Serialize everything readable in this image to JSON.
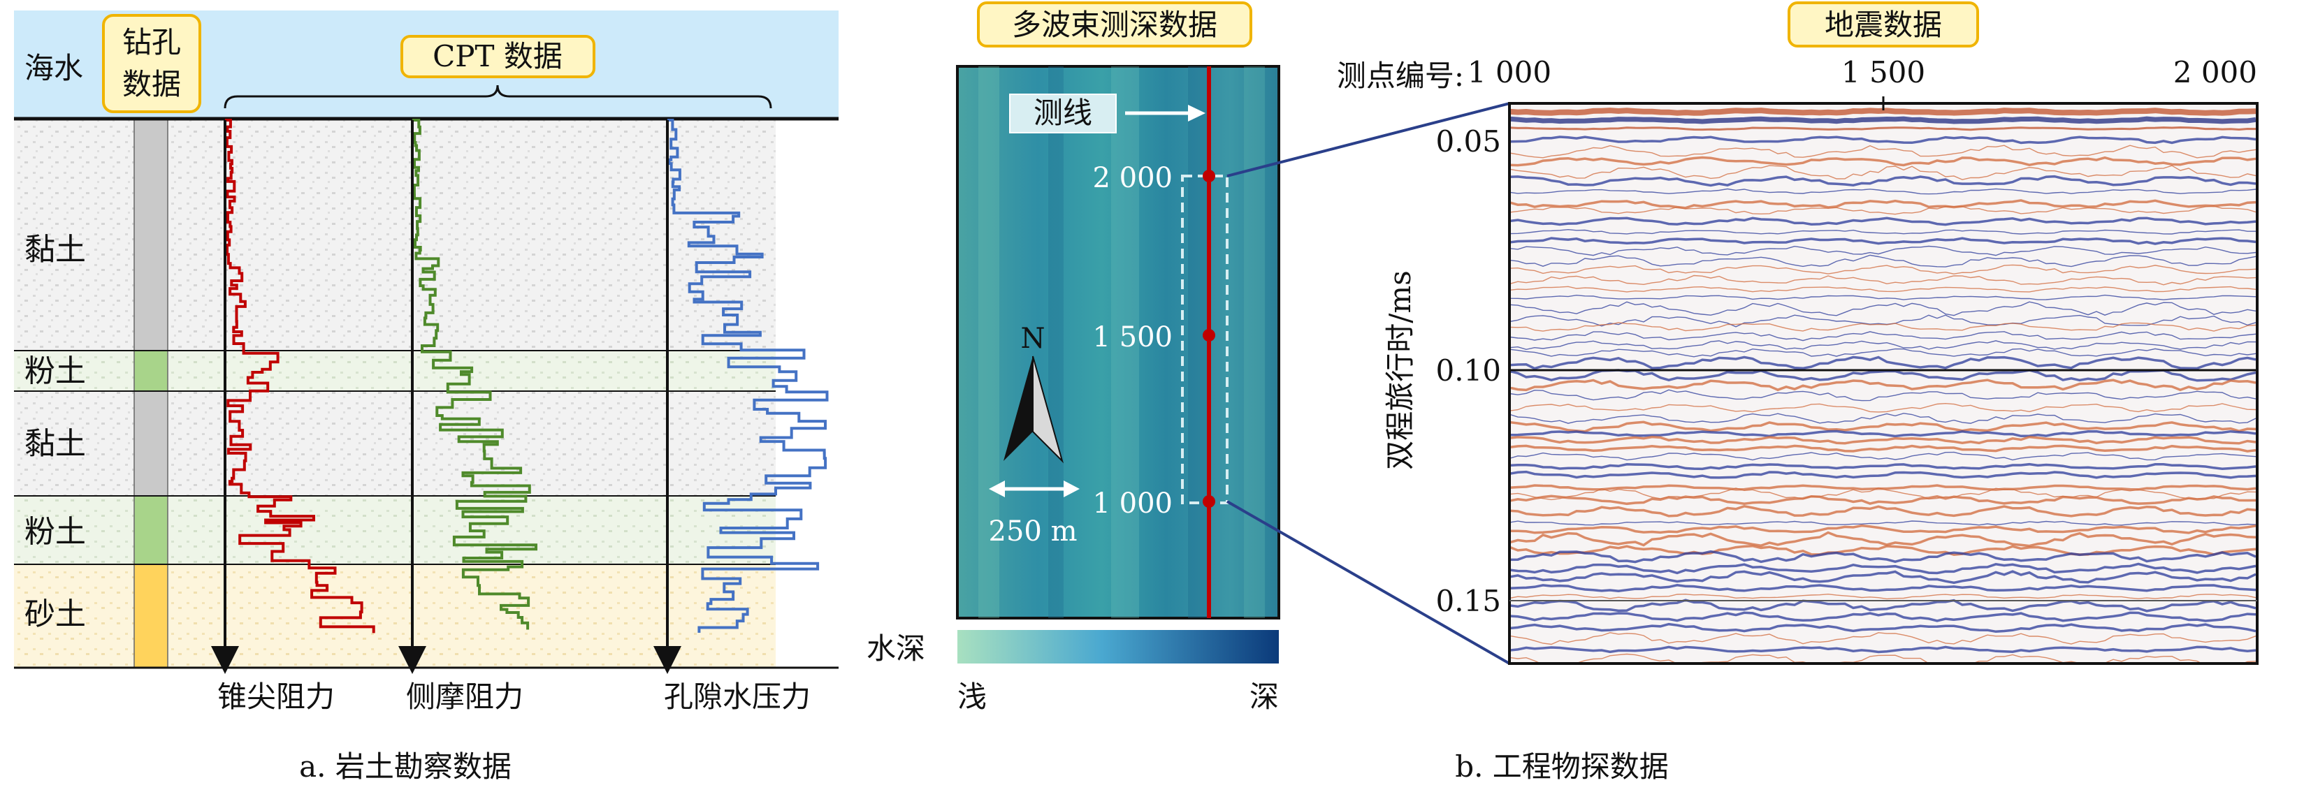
{
  "panel_a": {
    "labels": {
      "seawater": "海水",
      "borehole_line1": "钻孔",
      "borehole_line2": "数据",
      "cpt": "CPT 数据",
      "cone_resistance": "锥尖阻力",
      "side_friction": "侧摩阻力",
      "pore_pressure": "孔隙水压力"
    },
    "layers": [
      {
        "name": "黏土",
        "color": "#c9c9c9"
      },
      {
        "name": "粉土",
        "color": "#a8d48a"
      },
      {
        "name": "黏土",
        "color": "#c9c9c9"
      },
      {
        "name": "粉土",
        "color": "#a8d48a"
      },
      {
        "name": "砂土",
        "color": "#ffd35c"
      }
    ],
    "series_colors": {
      "cone": "#c00000",
      "side": "#4f8a2b",
      "pore": "#4472c4"
    },
    "caption": "a. 岩土勘察数据"
  },
  "panel_b": {
    "multibeam_title": "多波束测深数据",
    "survey_line": "测线",
    "station_labels": [
      "2 000",
      "1 500",
      "1 000"
    ],
    "north": "N",
    "scale_bar": "250 m",
    "depth_label": "水深",
    "shallow": "浅",
    "deep": "深",
    "depth_colors": [
      "#a8e0c0",
      "#4aa8d0",
      "#0b3a7a"
    ],
    "seismic_title": "地震数据",
    "station_axis_label": "测点编号:",
    "x_ticks": [
      "1 000",
      "1 500",
      "2 000"
    ],
    "y_axis_label": "双程旅行时/ms",
    "y_ticks": [
      "0.05",
      "0.10",
      "0.15"
    ],
    "caption": "b. 工程物探数据"
  }
}
